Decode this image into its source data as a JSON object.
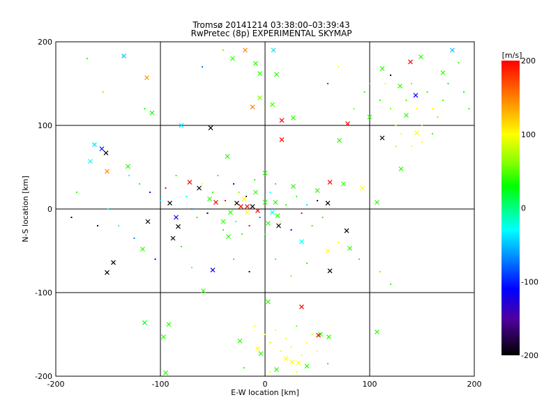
{
  "chart_data": {
    "type": "scatter",
    "title": "Tromsø 20141214 03:38:00–03:39:43",
    "subtitle": "RwPretec (8p) EXPERIMENTAL SKYMAP",
    "xlabel": "E-W location [km]",
    "ylabel": "N-S location [km]",
    "xlim": [
      -200,
      200
    ],
    "ylim": [
      -200,
      200
    ],
    "xticks": [
      -200,
      -100,
      0,
      100,
      200
    ],
    "yticks": [
      -200,
      -100,
      0,
      100,
      200
    ],
    "grid": true,
    "colorbar": {
      "label": "[m/s]",
      "range": [
        -200,
        200
      ],
      "ticks": [
        200,
        100,
        0,
        -100,
        -200
      ],
      "stops": [
        [
          200,
          "#ff0000"
        ],
        [
          150,
          "#ff8000"
        ],
        [
          100,
          "#ffff00"
        ],
        [
          60,
          "#80ff00"
        ],
        [
          30,
          "#00ff00"
        ],
        [
          0,
          "#00ff80"
        ],
        [
          -30,
          "#00ffff"
        ],
        [
          -70,
          "#0080ff"
        ],
        [
          -110,
          "#0000ff"
        ],
        [
          -150,
          "#5000a0"
        ],
        [
          -200,
          "#000000"
        ]
      ]
    },
    "crosses": [
      [
        -135,
        183,
        -50
      ],
      [
        -113,
        157,
        140
      ],
      [
        -108,
        115,
        30
      ],
      [
        -31,
        180,
        40
      ],
      [
        -19,
        190,
        150
      ],
      [
        8,
        190,
        -40
      ],
      [
        -9,
        174,
        40
      ],
      [
        -5,
        162,
        40
      ],
      [
        -5,
        133,
        60
      ],
      [
        -12,
        122,
        150
      ],
      [
        7,
        125,
        40
      ],
      [
        16,
        106,
        200
      ],
      [
        27,
        109,
        40
      ],
      [
        11,
        161,
        40
      ],
      [
        179,
        190,
        -50
      ],
      [
        139,
        176,
        200
      ],
      [
        149,
        182,
        40
      ],
      [
        170,
        163,
        40
      ],
      [
        144,
        136,
        -110
      ],
      [
        129,
        147,
        40
      ],
      [
        135,
        112,
        40
      ],
      [
        112,
        168,
        40
      ],
      [
        100,
        110,
        40
      ],
      [
        79,
        102,
        200
      ],
      [
        112,
        85,
        -200
      ],
      [
        130,
        48,
        40
      ],
      [
        -52,
        97,
        -200
      ],
      [
        -80,
        100,
        -40
      ],
      [
        -163,
        77,
        -40
      ],
      [
        -156,
        72,
        -100
      ],
      [
        -152,
        67,
        -200
      ],
      [
        -167,
        57,
        -30
      ],
      [
        -131,
        51,
        40
      ],
      [
        -151,
        45,
        150
      ],
      [
        16,
        83,
        200
      ],
      [
        -36,
        63,
        40
      ],
      [
        0,
        43,
        40
      ],
      [
        -72,
        32,
        200
      ],
      [
        -63,
        25,
        -200
      ],
      [
        -91,
        7,
        -200
      ],
      [
        -112,
        -15,
        -200
      ],
      [
        -83,
        -21,
        -200
      ],
      [
        -85,
        -10,
        -110
      ],
      [
        -40,
        -15,
        40
      ],
      [
        -35,
        -33,
        40
      ],
      [
        -145,
        -64,
        -200
      ],
      [
        -151,
        -76,
        -200
      ],
      [
        -117,
        -48,
        40
      ],
      [
        -88,
        -35,
        -200
      ],
      [
        -50,
        -73,
        -110
      ],
      [
        -59,
        -98,
        40
      ],
      [
        35,
        -39,
        -30
      ],
      [
        60,
        -50,
        100
      ],
      [
        62,
        -74,
        -200
      ],
      [
        81,
        -47,
        40
      ],
      [
        78,
        -26,
        -200
      ],
      [
        60,
        7,
        -200
      ],
      [
        50,
        22,
        40
      ],
      [
        62,
        32,
        200
      ],
      [
        75,
        30,
        40
      ],
      [
        93,
        25,
        100
      ],
      [
        71,
        82,
        40
      ],
      [
        145,
        91,
        100
      ],
      [
        107,
        8,
        40
      ],
      [
        27,
        27,
        40
      ],
      [
        35,
        -117,
        200
      ],
      [
        3,
        -111,
        40
      ],
      [
        -115,
        -136,
        20
      ],
      [
        -92,
        -138,
        40
      ],
      [
        -97,
        -153,
        40
      ],
      [
        -24,
        -158,
        40
      ],
      [
        -4,
        -173,
        40
      ],
      [
        -7,
        -167,
        100
      ],
      [
        53,
        -150,
        40
      ],
      [
        61,
        -153,
        40
      ],
      [
        51,
        -151,
        200
      ],
      [
        26,
        -183,
        100
      ],
      [
        20,
        -179,
        100
      ],
      [
        32,
        -184,
        100
      ],
      [
        40,
        -188,
        40
      ],
      [
        -95,
        -196,
        40
      ],
      [
        107,
        -147,
        40
      ],
      [
        11,
        -192,
        40
      ],
      [
        -27,
        7,
        -200
      ],
      [
        -23,
        3,
        200
      ],
      [
        -17,
        3,
        200
      ],
      [
        -12,
        3,
        -200
      ],
      [
        -7,
        -2,
        200
      ],
      [
        0,
        8,
        40
      ],
      [
        7,
        -4,
        -30
      ],
      [
        12,
        -8,
        40
      ],
      [
        13,
        -20,
        -200
      ],
      [
        3,
        -17,
        40
      ],
      [
        -17,
        -4,
        100
      ],
      [
        -33,
        -4,
        40
      ],
      [
        -47,
        8,
        200
      ],
      [
        -53,
        12,
        40
      ],
      [
        -20,
        12,
        100
      ],
      [
        -9,
        20,
        40
      ],
      [
        10,
        8,
        40
      ]
    ],
    "dots": [
      [
        -170,
        180,
        40
      ],
      [
        -155,
        140,
        60
      ],
      [
        -115,
        120,
        30
      ],
      [
        -60,
        170,
        -70
      ],
      [
        -40,
        190,
        60
      ],
      [
        60,
        150,
        200
      ],
      [
        70,
        170,
        100
      ],
      [
        85,
        120,
        60
      ],
      [
        95,
        140,
        40
      ],
      [
        110,
        130,
        40
      ],
      [
        115,
        150,
        100
      ],
      [
        120,
        120,
        60
      ],
      [
        125,
        100,
        100
      ],
      [
        130,
        90,
        100
      ],
      [
        135,
        130,
        40
      ],
      [
        140,
        150,
        60
      ],
      [
        145,
        120,
        100
      ],
      [
        150,
        100,
        80
      ],
      [
        155,
        140,
        40
      ],
      [
        160,
        120,
        100
      ],
      [
        165,
        110,
        60
      ],
      [
        150,
        80,
        100
      ],
      [
        140,
        75,
        100
      ],
      [
        125,
        75,
        80
      ],
      [
        160,
        90,
        40
      ],
      [
        170,
        130,
        40
      ],
      [
        175,
        150,
        30
      ],
      [
        185,
        175,
        40
      ],
      [
        190,
        140,
        30
      ],
      [
        195,
        120,
        40
      ],
      [
        120,
        160,
        -200
      ],
      [
        100,
        150,
        -40
      ],
      [
        -130,
        40,
        -30
      ],
      [
        -120,
        30,
        40
      ],
      [
        -110,
        20,
        -110
      ],
      [
        -100,
        10,
        -40
      ],
      [
        -95,
        25,
        200
      ],
      [
        -85,
        40,
        40
      ],
      [
        -75,
        15,
        -30
      ],
      [
        -70,
        0,
        -70
      ],
      [
        -65,
        -10,
        40
      ],
      [
        -60,
        30,
        100
      ],
      [
        -55,
        -5,
        -200
      ],
      [
        -50,
        20,
        40
      ],
      [
        -45,
        40,
        -40
      ],
      [
        -40,
        -25,
        40
      ],
      [
        -38,
        10,
        200
      ],
      [
        -30,
        30,
        -110
      ],
      [
        -28,
        -15,
        -30
      ],
      [
        -25,
        20,
        60
      ],
      [
        -22,
        -30,
        40
      ],
      [
        -18,
        15,
        -200
      ],
      [
        -15,
        -20,
        200
      ],
      [
        -10,
        35,
        40
      ],
      [
        -5,
        -10,
        -70
      ],
      [
        0,
        -30,
        40
      ],
      [
        5,
        20,
        -30
      ],
      [
        10,
        30,
        40
      ],
      [
        15,
        -15,
        100
      ],
      [
        20,
        5,
        40
      ],
      [
        25,
        -25,
        -110
      ],
      [
        30,
        15,
        40
      ],
      [
        35,
        -5,
        200
      ],
      [
        40,
        5,
        -40
      ],
      [
        45,
        -20,
        40
      ],
      [
        50,
        10,
        -200
      ],
      [
        55,
        -10,
        40
      ],
      [
        -140,
        -20,
        -30
      ],
      [
        -125,
        -35,
        -70
      ],
      [
        -105,
        -60,
        -110
      ],
      [
        -80,
        -45,
        40
      ],
      [
        -70,
        -70,
        -30
      ],
      [
        -30,
        -60,
        40
      ],
      [
        -15,
        -75,
        -200
      ],
      [
        10,
        -60,
        -30
      ],
      [
        25,
        -80,
        60
      ],
      [
        40,
        -65,
        40
      ],
      [
        70,
        -40,
        100
      ],
      [
        90,
        -60,
        40
      ],
      [
        110,
        -75,
        60
      ],
      [
        120,
        -90,
        40
      ],
      [
        -160,
        -20,
        -200
      ],
      [
        -185,
        -10,
        -200
      ],
      [
        -180,
        20,
        40
      ],
      [
        -150,
        0,
        -30
      ],
      [
        -10,
        -140,
        100
      ],
      [
        0,
        -150,
        100
      ],
      [
        5,
        -160,
        80
      ],
      [
        10,
        -145,
        100
      ],
      [
        15,
        -170,
        100
      ],
      [
        20,
        -155,
        100
      ],
      [
        25,
        -165,
        100
      ],
      [
        30,
        -140,
        60
      ],
      [
        35,
        -175,
        100
      ],
      [
        40,
        -160,
        100
      ],
      [
        45,
        -150,
        80
      ],
      [
        50,
        -170,
        100
      ],
      [
        30,
        -195,
        100
      ],
      [
        -20,
        -190,
        40
      ],
      [
        5,
        -195,
        100
      ],
      [
        60,
        -185,
        40
      ]
    ]
  }
}
